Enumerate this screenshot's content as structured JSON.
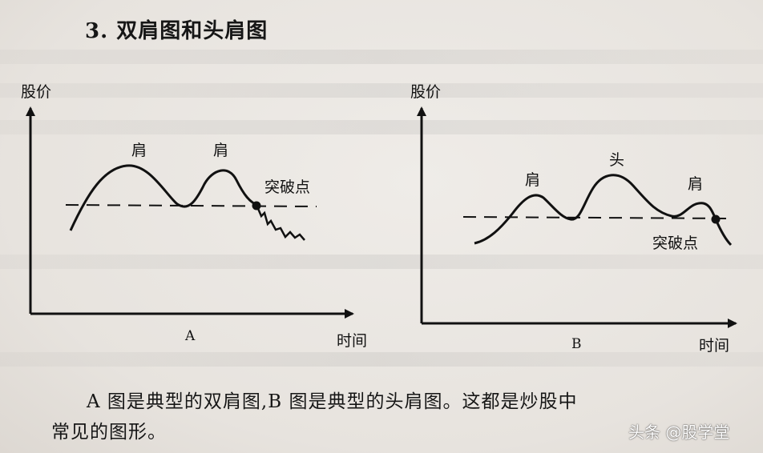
{
  "heading": {
    "number": "3.",
    "title": "双肩图和头肩图"
  },
  "figure_a": {
    "y_axis": "股价",
    "x_axis": "时间",
    "caption": "A",
    "shoulder_left": "肩",
    "shoulder_right": "肩",
    "breakout": "突破点"
  },
  "figure_b": {
    "y_axis": "股价",
    "x_axis": "时间",
    "caption": "B",
    "shoulder_left": "肩",
    "head": "头",
    "shoulder_right": "肩",
    "breakout": "突破点"
  },
  "body": {
    "line1": "A 图是典型的双肩图,B 图是典型的头肩图。这都是炒股中",
    "line2": "常见的图形。"
  },
  "watermark": "头条 @股学堂"
}
